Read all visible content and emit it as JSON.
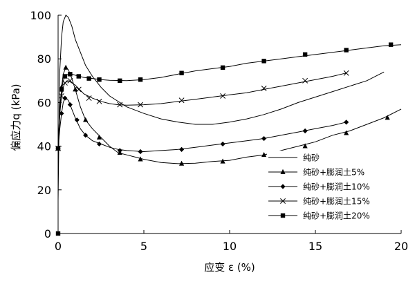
{
  "chart_data": {
    "type": "line",
    "title": "",
    "xlabel": "应变 ε (%)",
    "ylabel": "偏应力q (kPa)",
    "xlim": [
      0,
      20
    ],
    "ylim": [
      0,
      100
    ],
    "xticks": [
      0,
      5,
      10,
      15,
      20
    ],
    "yticks": [
      0,
      20,
      40,
      60,
      80,
      100
    ],
    "grid": false,
    "legend_position": "lower-right",
    "series": [
      {
        "name": "纯砂",
        "marker": "none",
        "points": [
          [
            0,
            15
          ],
          [
            0.05,
            45
          ],
          [
            0.1,
            75
          ],
          [
            0.2,
            90
          ],
          [
            0.3,
            97
          ],
          [
            0.45,
            100
          ],
          [
            0.6,
            99
          ],
          [
            0.8,
            95
          ],
          [
            1.0,
            89
          ],
          [
            1.3,
            83
          ],
          [
            1.6,
            77
          ],
          [
            2.0,
            72
          ],
          [
            2.5,
            67
          ],
          [
            3.0,
            63
          ],
          [
            4.0,
            58
          ],
          [
            5.0,
            55
          ],
          [
            6.0,
            52.5
          ],
          [
            7.0,
            51
          ],
          [
            8.0,
            50
          ],
          [
            9.0,
            50
          ],
          [
            10.0,
            51
          ],
          [
            11.0,
            52.5
          ],
          [
            12.0,
            54.5
          ],
          [
            13.0,
            57
          ],
          [
            14.0,
            60
          ],
          [
            15.0,
            62.5
          ],
          [
            16.0,
            65
          ],
          [
            17.0,
            67.5
          ],
          [
            18.0,
            70
          ],
          [
            19.0,
            74
          ]
        ]
      },
      {
        "name": "纯砂+膨润土5%",
        "marker": "triangle",
        "points": [
          [
            0,
            39
          ],
          [
            0.1,
            55
          ],
          [
            0.2,
            67
          ],
          [
            0.3,
            73
          ],
          [
            0.45,
            76
          ],
          [
            0.6,
            75
          ],
          [
            0.8,
            71
          ],
          [
            1.0,
            66
          ],
          [
            1.3,
            58
          ],
          [
            1.6,
            52
          ],
          [
            2.0,
            48
          ],
          [
            2.5,
            44
          ],
          [
            3.0,
            40
          ],
          [
            3.5,
            37
          ],
          [
            4.0,
            36
          ],
          [
            4.5,
            35
          ],
          [
            5.0,
            34
          ],
          [
            6.0,
            32.5
          ],
          [
            7.0,
            32
          ],
          [
            8.0,
            32.2
          ],
          [
            9.0,
            33
          ],
          [
            10.0,
            33.5
          ],
          [
            11.0,
            35
          ],
          [
            12.0,
            36
          ],
          [
            13.0,
            38
          ],
          [
            14.0,
            40
          ],
          [
            15.0,
            42
          ],
          [
            16.0,
            45
          ],
          [
            17.0,
            47
          ],
          [
            18.0,
            50
          ],
          [
            19.0,
            53
          ],
          [
            20.0,
            57
          ]
        ],
        "marked": [
          [
            0,
            39
          ],
          [
            0.2,
            67
          ],
          [
            0.45,
            76
          ],
          [
            1.0,
            66
          ],
          [
            1.6,
            52
          ],
          [
            2.4,
            44
          ],
          [
            3.6,
            37
          ],
          [
            4.8,
            34
          ],
          [
            7.2,
            32
          ],
          [
            9.6,
            33
          ],
          [
            12,
            36
          ],
          [
            14.4,
            40
          ],
          [
            16.8,
            46
          ],
          [
            19.2,
            53
          ]
        ]
      },
      {
        "name": "纯砂+膨润土10%",
        "marker": "diamond",
        "points": [
          [
            0,
            39
          ],
          [
            0.1,
            48
          ],
          [
            0.2,
            55
          ],
          [
            0.3,
            60
          ],
          [
            0.4,
            62
          ],
          [
            0.6,
            61
          ],
          [
            0.8,
            57
          ],
          [
            1.0,
            53
          ],
          [
            1.3,
            48
          ],
          [
            1.6,
            45
          ],
          [
            2.0,
            42.5
          ],
          [
            2.5,
            41
          ],
          [
            3.0,
            39.5
          ],
          [
            3.5,
            38.5
          ],
          [
            4.0,
            38
          ],
          [
            5.0,
            37.5
          ],
          [
            6.0,
            38
          ],
          [
            7.0,
            38.5
          ],
          [
            8.0,
            39.5
          ],
          [
            9.0,
            40.5
          ],
          [
            10.0,
            41.5
          ],
          [
            11.0,
            42.5
          ],
          [
            12.0,
            43.5
          ],
          [
            13.0,
            45
          ],
          [
            14.0,
            46.5
          ],
          [
            15.0,
            48
          ],
          [
            16.0,
            49.5
          ],
          [
            16.8,
            51
          ]
        ],
        "marked": [
          [
            0,
            39
          ],
          [
            0.2,
            55
          ],
          [
            0.4,
            62
          ],
          [
            0.7,
            59
          ],
          [
            1.1,
            52
          ],
          [
            1.6,
            45
          ],
          [
            2.4,
            41
          ],
          [
            3.6,
            38
          ],
          [
            4.8,
            37.5
          ],
          [
            7.2,
            38.5
          ],
          [
            9.6,
            41
          ],
          [
            12,
            43.5
          ],
          [
            14.4,
            47
          ],
          [
            16.8,
            51
          ]
        ]
      },
      {
        "name": "纯砂+膨润土15%",
        "marker": "x",
        "points": [
          [
            0,
            39
          ],
          [
            0.1,
            55
          ],
          [
            0.2,
            63
          ],
          [
            0.3,
            67
          ],
          [
            0.4,
            69
          ],
          [
            0.6,
            70
          ],
          [
            0.8,
            69
          ],
          [
            1.0,
            68
          ],
          [
            1.5,
            64
          ],
          [
            2.0,
            62
          ],
          [
            2.5,
            60.5
          ],
          [
            3.0,
            59.5
          ],
          [
            3.5,
            59
          ],
          [
            4.0,
            58.8
          ],
          [
            5.0,
            59
          ],
          [
            6.0,
            59.5
          ],
          [
            7.0,
            60.5
          ],
          [
            8.0,
            61.5
          ],
          [
            9.0,
            62.5
          ],
          [
            10.0,
            63.5
          ],
          [
            11.0,
            64.5
          ],
          [
            12.0,
            66
          ],
          [
            13.0,
            67.5
          ],
          [
            14.0,
            69
          ],
          [
            15.0,
            70.5
          ],
          [
            16.0,
            72
          ],
          [
            16.8,
            73.5
          ]
        ],
        "marked": [
          [
            0,
            39
          ],
          [
            0.2,
            63
          ],
          [
            0.4,
            69
          ],
          [
            0.7,
            70
          ],
          [
            1.2,
            66
          ],
          [
            1.8,
            62
          ],
          [
            2.4,
            60.5
          ],
          [
            3.6,
            59
          ],
          [
            4.8,
            59
          ],
          [
            7.2,
            61
          ],
          [
            9.6,
            63
          ],
          [
            12,
            66.5
          ],
          [
            14.4,
            70
          ],
          [
            16.8,
            73.5
          ]
        ]
      },
      {
        "name": "纯砂+膨润土20%",
        "marker": "square",
        "points": [
          [
            0,
            39
          ],
          [
            0.1,
            58
          ],
          [
            0.2,
            66
          ],
          [
            0.3,
            70
          ],
          [
            0.4,
            72
          ],
          [
            0.6,
            73
          ],
          [
            0.8,
            73
          ],
          [
            1.0,
            72.5
          ],
          [
            1.5,
            71.5
          ],
          [
            2.0,
            71
          ],
          [
            2.5,
            70.5
          ],
          [
            3.0,
            70.2
          ],
          [
            4.0,
            70
          ],
          [
            5.0,
            70.5
          ],
          [
            6.0,
            71.5
          ],
          [
            7.0,
            73
          ],
          [
            8.0,
            74.5
          ],
          [
            9.0,
            75.5
          ],
          [
            10.0,
            76.5
          ],
          [
            11.0,
            78
          ],
          [
            12.0,
            79
          ],
          [
            13.0,
            80
          ],
          [
            14.0,
            81
          ],
          [
            15.0,
            82
          ],
          [
            16.0,
            83
          ],
          [
            17.0,
            84
          ],
          [
            18.0,
            85
          ],
          [
            19.0,
            86
          ],
          [
            20.0,
            86.5
          ]
        ],
        "marked": [
          [
            0,
            0
          ],
          [
            0,
            39
          ],
          [
            0.2,
            66
          ],
          [
            0.4,
            72
          ],
          [
            0.7,
            73
          ],
          [
            1.2,
            72
          ],
          [
            1.8,
            71
          ],
          [
            2.4,
            70.5
          ],
          [
            3.6,
            70
          ],
          [
            4.8,
            70.5
          ],
          [
            7.2,
            73.5
          ],
          [
            9.6,
            76
          ],
          [
            12,
            79
          ],
          [
            14.4,
            82
          ],
          [
            16.8,
            84
          ],
          [
            19.4,
            86.5
          ]
        ]
      }
    ]
  }
}
